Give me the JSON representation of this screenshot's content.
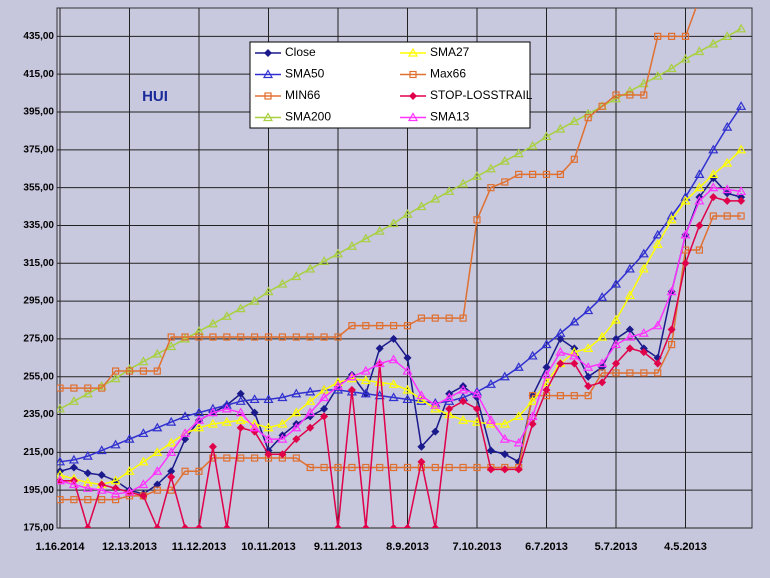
{
  "chart_data": {
    "type": "line",
    "annotation": "HUI",
    "categories": [
      "1.16.2014",
      null,
      null,
      null,
      null,
      "12.13.2013",
      null,
      null,
      null,
      null,
      "11.12.2013",
      null,
      null,
      null,
      null,
      "10.11.2013",
      null,
      null,
      null,
      null,
      "9.11.2013",
      null,
      null,
      null,
      null,
      "8.9.2013",
      null,
      null,
      null,
      null,
      "7.10.2013",
      null,
      null,
      null,
      null,
      "6.7.2013",
      null,
      null,
      null,
      null,
      "5.7.2013",
      null,
      null,
      null,
      null,
      "4.5.2013",
      null,
      null,
      null,
      null
    ],
    "ylim": [
      175,
      450
    ],
    "yticks": [
      {
        "value": 175,
        "label": "175,00"
      },
      {
        "value": 195,
        "label": "195,00"
      },
      {
        "value": 215,
        "label": "215,00"
      },
      {
        "value": 235,
        "label": "235,00"
      },
      {
        "value": 255,
        "label": "255,00"
      },
      {
        "value": 275,
        "label": "275,00"
      },
      {
        "value": 295,
        "label": "295,00"
      },
      {
        "value": 315,
        "label": "315,00"
      },
      {
        "value": 335,
        "label": "335,00"
      },
      {
        "value": 355,
        "label": "355,00"
      },
      {
        "value": 375,
        "label": "375,00"
      },
      {
        "value": 395,
        "label": "395,00"
      },
      {
        "value": 415,
        "label": "415,00"
      },
      {
        "value": 435,
        "label": "435,00"
      }
    ],
    "grid": true,
    "series": [
      {
        "name": "Close",
        "color": "#1a1a8c",
        "marker": "diamond",
        "values": [
          205,
          207,
          204,
          203,
          200,
          195,
          193,
          198,
          205,
          222,
          232,
          236,
          240,
          246,
          236,
          216,
          224,
          230,
          234,
          238,
          250,
          256,
          246,
          270,
          275,
          265,
          218,
          226,
          246,
          250,
          244,
          216,
          214,
          210,
          245,
          260,
          275,
          270,
          255,
          260,
          275,
          280,
          270,
          265,
          300,
          330,
          350,
          360,
          352,
          350
        ]
      },
      {
        "name": "SMA50",
        "color": "#3030d0",
        "marker": "triangle",
        "values": [
          210,
          211,
          213,
          216,
          219,
          222,
          225,
          228,
          231,
          234,
          236,
          238,
          240,
          242,
          243,
          243,
          244,
          246,
          247,
          248,
          248,
          247,
          246,
          245,
          244,
          243,
          242,
          241,
          242,
          244,
          247,
          251,
          255,
          260,
          266,
          272,
          278,
          284,
          290,
          297,
          304,
          312,
          320,
          330,
          340,
          350,
          362,
          375,
          387,
          398
        ]
      },
      {
        "name": "MIN66",
        "color": "#e07030",
        "marker": "square",
        "values": [
          190,
          190,
          190,
          190,
          190,
          192,
          192,
          195,
          195,
          205,
          205,
          212,
          212,
          212,
          212,
          212,
          212,
          212,
          207,
          207,
          207,
          207,
          207,
          207,
          207,
          207,
          207,
          207,
          207,
          207,
          207,
          207,
          207,
          207,
          245,
          245,
          245,
          245,
          245,
          257,
          257,
          257,
          257,
          257,
          272,
          322,
          322,
          340,
          340,
          340
        ]
      },
      {
        "name": "SMA200",
        "color": "#a8d040",
        "marker": "triangle",
        "values": [
          238,
          242,
          246,
          250,
          254,
          259,
          263,
          267,
          271,
          275,
          279,
          283,
          287,
          291,
          295,
          300,
          304,
          308,
          312,
          316,
          320,
          324,
          328,
          332,
          336,
          341,
          345,
          349,
          353,
          357,
          361,
          365,
          369,
          373,
          377,
          382,
          386,
          390,
          394,
          398,
          402,
          406,
          410,
          414,
          418,
          423,
          427,
          431,
          435,
          439
        ]
      },
      {
        "name": "SMA27",
        "color": "#ffff00",
        "marker": "triangle",
        "values": [
          203,
          201,
          199,
          198,
          200,
          205,
          210,
          215,
          220,
          225,
          228,
          230,
          231,
          232,
          230,
          228,
          230,
          236,
          242,
          248,
          252,
          254,
          253,
          252,
          251,
          248,
          243,
          238,
          235,
          232,
          231,
          230,
          230,
          234,
          242,
          252,
          262,
          268,
          270,
          276,
          285,
          298,
          312,
          325,
          338,
          348,
          355,
          362,
          368,
          375
        ]
      },
      {
        "name": "Max66",
        "color": "#e07030",
        "marker": "square",
        "values": [
          249,
          249,
          249,
          249,
          258,
          258,
          258,
          258,
          276,
          276,
          276,
          276,
          276,
          276,
          276,
          276,
          276,
          276,
          276,
          276,
          276,
          282,
          282,
          282,
          282,
          282,
          286,
          286,
          286,
          286,
          338,
          355,
          358,
          362,
          362,
          362,
          362,
          370,
          392,
          398,
          404,
          404,
          404,
          435,
          435,
          435,
          455,
          455,
          455,
          455
        ]
      },
      {
        "name": "STOP-LOSSTRAIL",
        "color": "#e0004a",
        "marker": "diamond",
        "values": [
          200,
          200,
          175,
          198,
          196,
          194,
          192,
          175,
          202,
          175,
          175,
          218,
          175,
          228,
          226,
          214,
          214,
          222,
          228,
          234,
          175,
          248,
          175,
          262,
          175,
          175,
          210,
          175,
          238,
          242,
          238,
          206,
          206,
          206,
          230,
          248,
          262,
          262,
          250,
          252,
          262,
          270,
          268,
          262,
          280,
          315,
          335,
          350,
          348,
          348
        ]
      },
      {
        "name": "SMA13",
        "color": "#ff33ff",
        "marker": "triangle",
        "values": [
          200,
          198,
          196,
          195,
          193,
          194,
          198,
          205,
          215,
          225,
          232,
          236,
          238,
          236,
          228,
          222,
          222,
          228,
          236,
          244,
          250,
          255,
          258,
          262,
          264,
          258,
          245,
          240,
          244,
          248,
          246,
          232,
          222,
          220,
          234,
          256,
          268,
          266,
          260,
          262,
          272,
          276,
          278,
          282,
          300,
          330,
          348,
          355,
          354,
          353
        ]
      }
    ]
  }
}
